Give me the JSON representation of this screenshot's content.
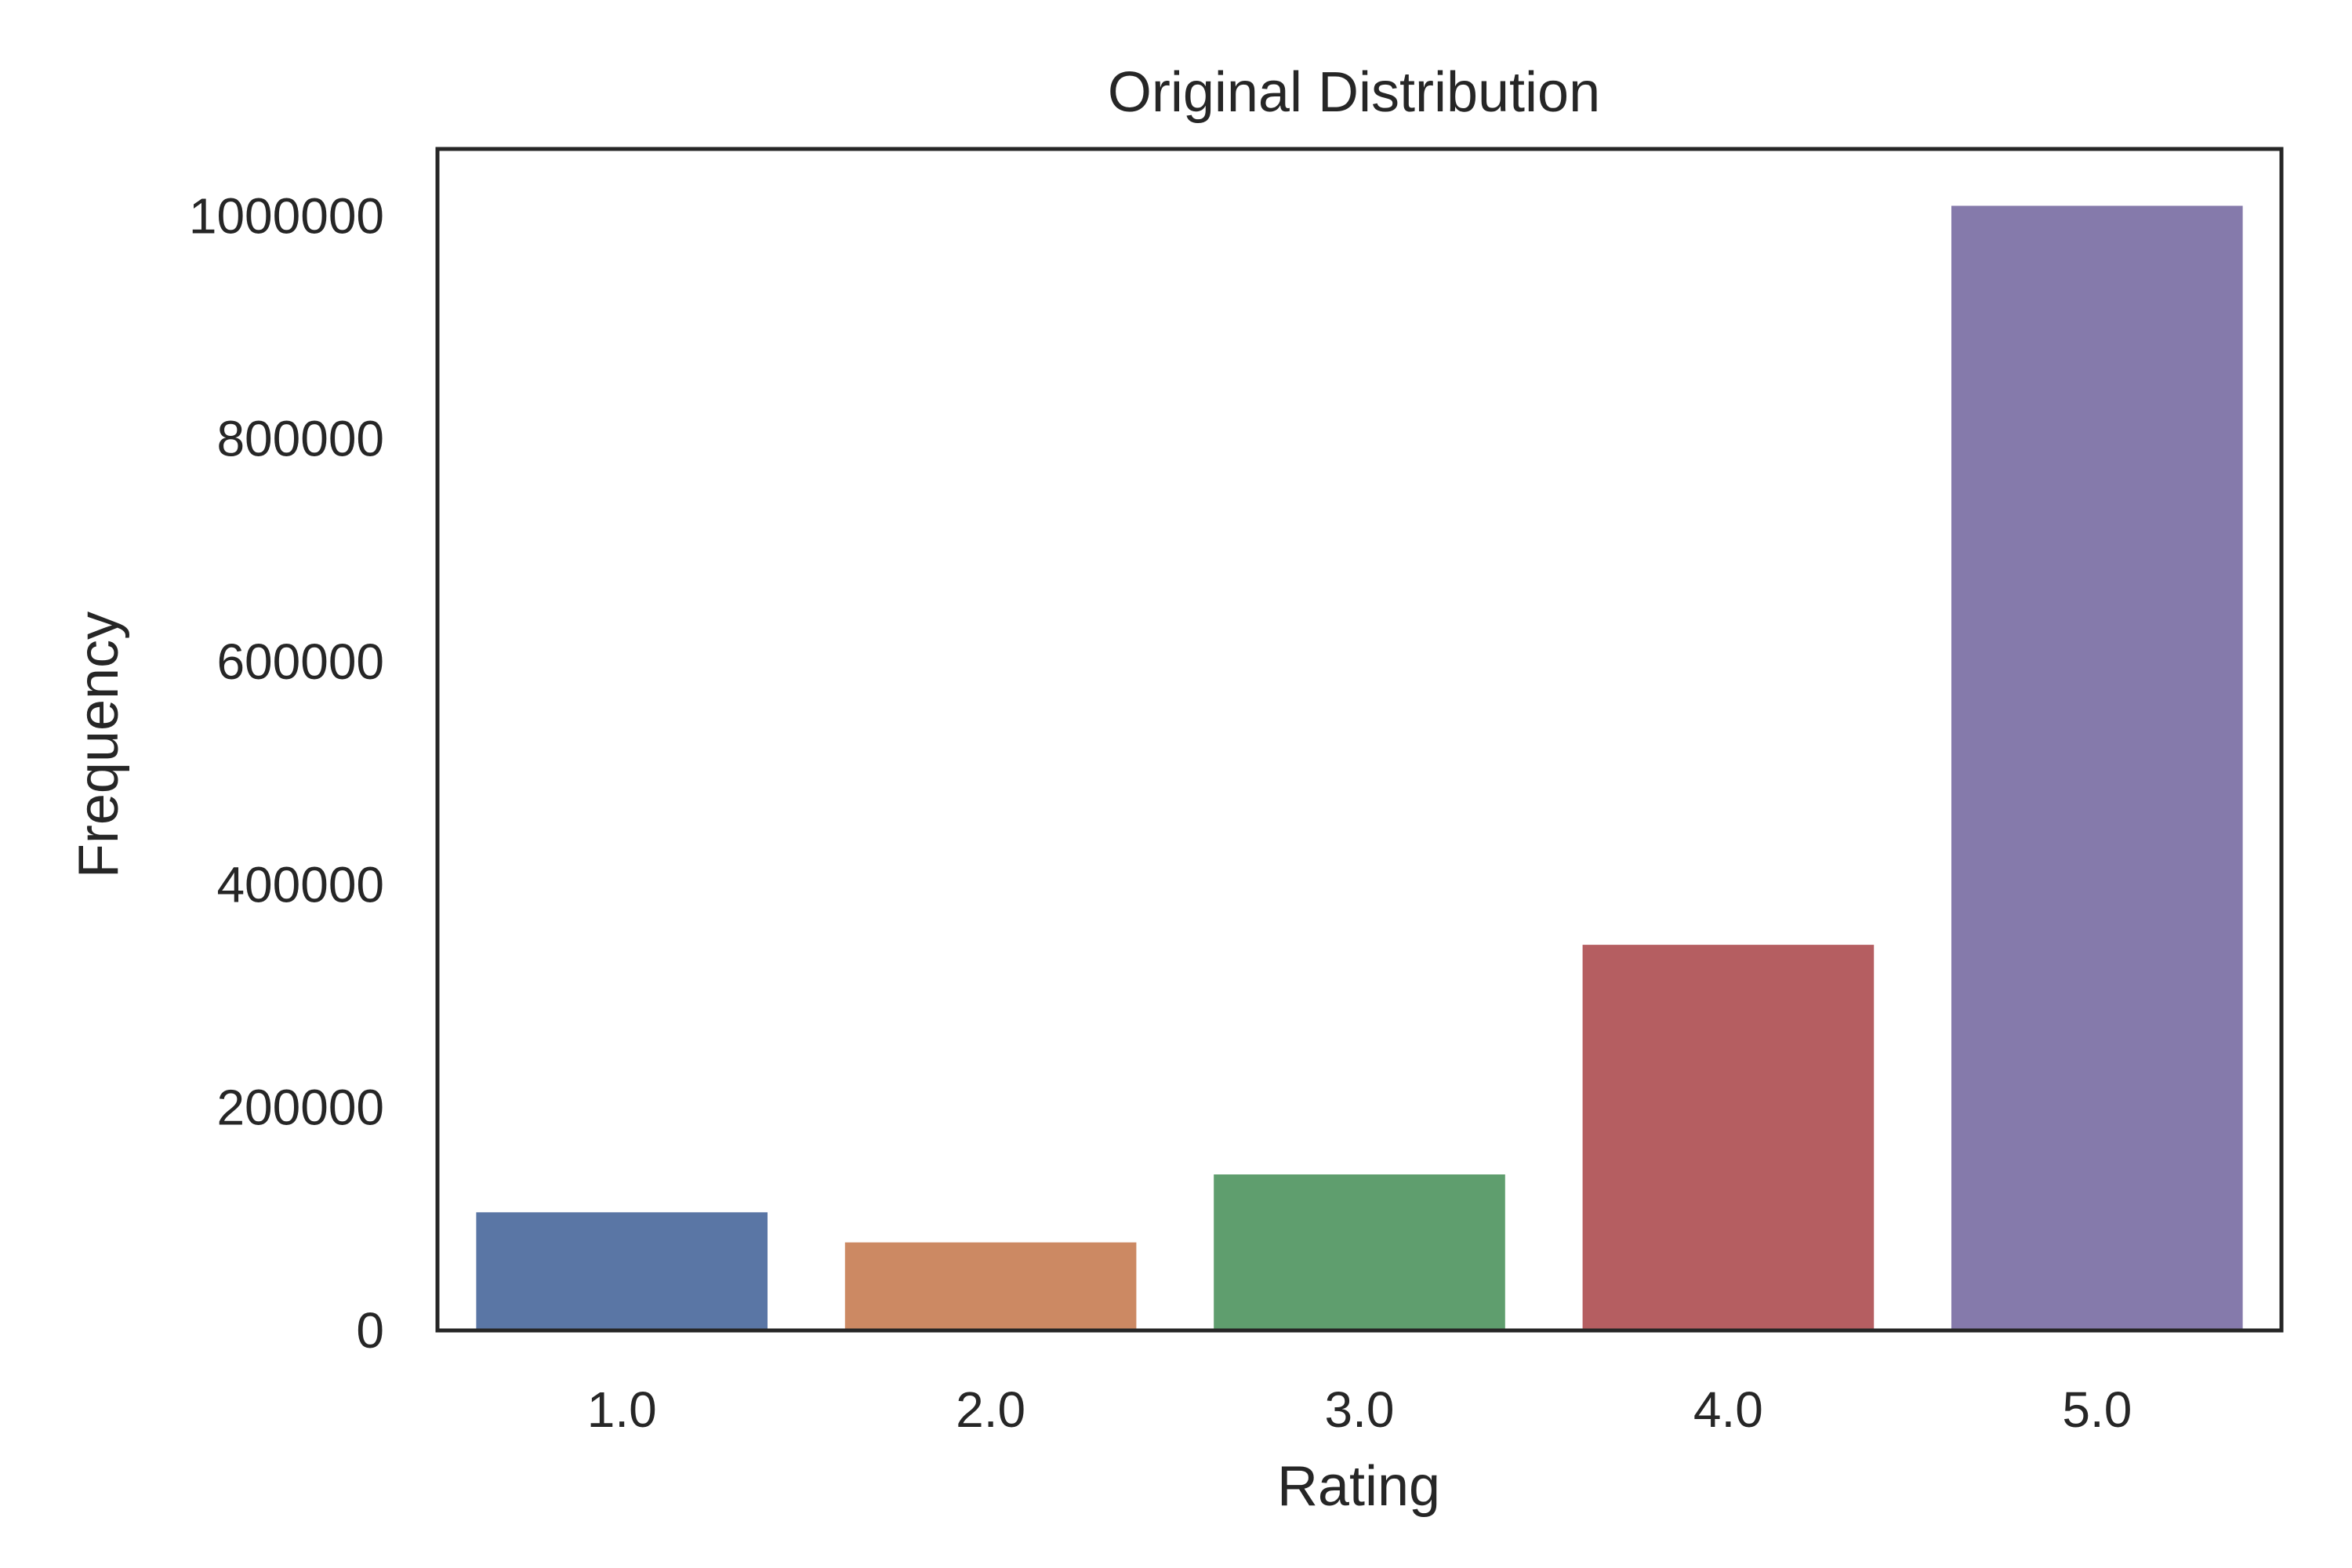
{
  "chart_data": {
    "type": "bar",
    "title": "Original Distribution",
    "xlabel": "Rating",
    "ylabel": "Frequency",
    "categories": [
      "1.0",
      "2.0",
      "3.0",
      "4.0",
      "5.0"
    ],
    "values": [
      106000,
      79000,
      140000,
      346000,
      1009000
    ],
    "colors": [
      "#5a76a5",
      "#cc8963",
      "#5f9e6e",
      "#b55e61",
      "#857aab"
    ],
    "yticks": [
      0,
      200000,
      400000,
      600000,
      800000,
      1000000
    ],
    "ytick_labels": [
      "0",
      "200000",
      "400000",
      "600000",
      "800000",
      "1000000"
    ],
    "ylim": [
      0,
      1060000
    ],
    "grid": false,
    "legend": "none"
  }
}
